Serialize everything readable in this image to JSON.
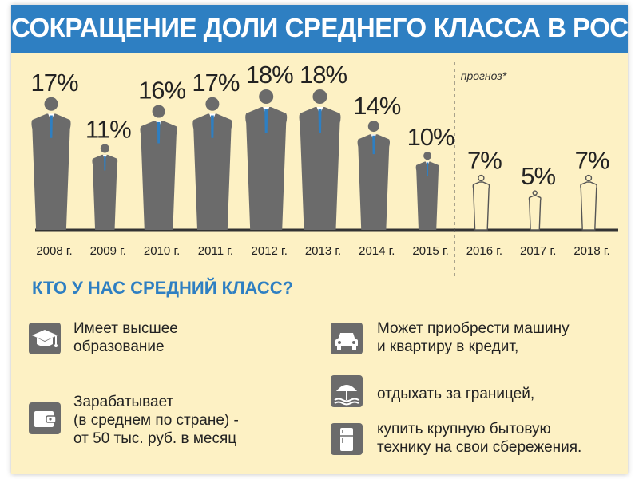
{
  "header": {
    "title": "СОКРАЩЕНИЕ ДОЛИ СРЕДНЕГО КЛАССА В РОССИИ"
  },
  "chart_data": {
    "type": "bar",
    "title": "СОКРАЩЕНИЕ ДОЛИ СРЕДНЕГО КЛАССА В РОССИИ",
    "categories": [
      "2008 г.",
      "2009 г.",
      "2010 г.",
      "2011 г.",
      "2012 г.",
      "2013 г.",
      "2014 г.",
      "2015 г.",
      "2016 г.",
      "2017 г.",
      "2018 г."
    ],
    "series": [
      {
        "values": [
          17,
          11,
          16,
          17,
          18,
          18,
          14,
          10,
          7,
          5,
          7
        ]
      }
    ],
    "value_labels": [
      "17%",
      "11%",
      "16%",
      "17%",
      "18%",
      "18%",
      "14%",
      "10%",
      "7%",
      "5%",
      "7%"
    ],
    "forecast_label": "прогноз*",
    "forecast_categories": [
      "2016 г.",
      "2017 г.",
      "2018 г."
    ],
    "unit": "%",
    "colors": {
      "actual": "#6b6b6b",
      "forecast_outline": "#555555",
      "tie": "#2e7fc2",
      "title_bar": "#2e7fc2",
      "background": "#fdf1c4"
    }
  },
  "info": {
    "heading": "КТО У НАС СРЕДНИЙ КЛАСС?",
    "items": [
      {
        "icon": "graduation-cap-icon",
        "lines": [
          "Имеет высшее",
          "образование"
        ]
      },
      {
        "icon": "wallet-icon",
        "lines": [
          "Зарабатывает",
          "(в среднем по стране) -",
          "от 50 тыс. руб. в месяц"
        ]
      },
      {
        "icon": "car-icon",
        "lines": [
          "Может приобрести машину",
          "и квартиру в кредит,"
        ]
      },
      {
        "icon": "beach-umbrella-icon",
        "lines": [
          "отдыхать за границей,"
        ]
      },
      {
        "icon": "refrigerator-icon",
        "lines": [
          "купить крупную бытовую",
          "технику на свои сбережения."
        ]
      }
    ]
  }
}
